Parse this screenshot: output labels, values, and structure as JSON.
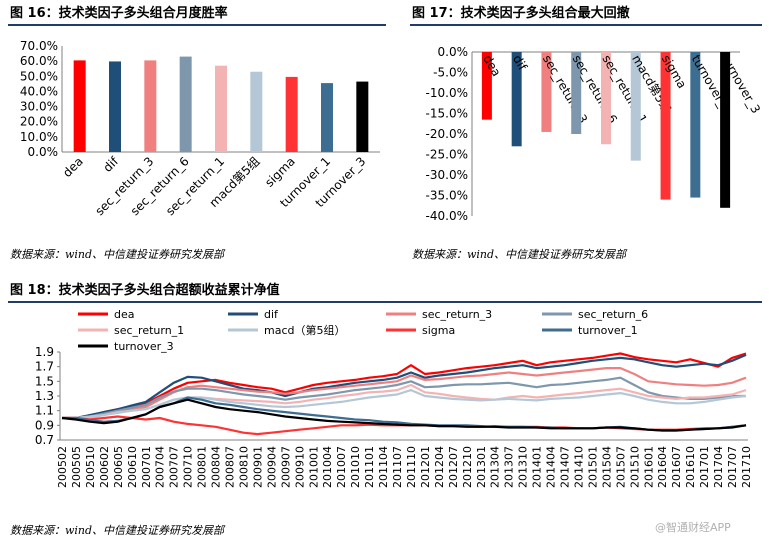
{
  "charts": {
    "fig16": {
      "title": "图 16：技术类因子多头组合月度胜率",
      "source": "数据来源：wind、中信建投证券研究发展部"
    },
    "fig17": {
      "title": "图 17：技术类因子多头组合最大回撤",
      "source": "数据来源：wind、中信建投证券研究发展部"
    },
    "fig18": {
      "title": "图 18：技术类因子多头组合超额收益累计净值",
      "source": "数据来源：wind、中信建投证券研究发展部"
    }
  },
  "watermark": "@智通财经APP",
  "chart_data": [
    {
      "type": "bar",
      "title": "图 16：技术类因子多头组合月度胜率",
      "categories": [
        "dea",
        "dif",
        "sec_return_3",
        "sec_return_6",
        "sec_return_1",
        "macd第5组",
        "sigma",
        "turnover_1",
        "turnover_3"
      ],
      "values": [
        60.5,
        59.8,
        60.5,
        63.0,
        57.0,
        53.0,
        49.6,
        45.5,
        46.5
      ],
      "colors": [
        "#ff0000",
        "#1f4e79",
        "#f08080",
        "#7f97ad",
        "#f4b3b3",
        "#b4c7d6",
        "#ff3333",
        "#3d6d91",
        "#000000"
      ],
      "yticks": [
        "70.0%",
        "60.0%",
        "50.0%",
        "40.0%",
        "30.0%",
        "20.0%",
        "10.0%",
        "0.0%"
      ],
      "ylim": [
        0,
        70
      ],
      "grid": false
    },
    {
      "type": "bar",
      "title": "图 17：技术类因子多头组合最大回撤",
      "categories": [
        "dea",
        "dif",
        "sec_return_3",
        "sec_return_6",
        "sec_return_1",
        "macd第5组",
        "sigma",
        "turnover_1",
        "turnover_3"
      ],
      "values": [
        -16.5,
        -23.0,
        -19.5,
        -20.0,
        -22.5,
        -26.5,
        -36.0,
        -35.5,
        -38.0
      ],
      "colors": [
        "#ff0000",
        "#1f4e79",
        "#f08080",
        "#7f97ad",
        "#f4b3b3",
        "#b4c7d6",
        "#ff3333",
        "#3d6d91",
        "#000000"
      ],
      "yticks": [
        "0.0%",
        "-5.0%",
        "-10.0%",
        "-15.0%",
        "-20.0%",
        "-25.0%",
        "-30.0%",
        "-35.0%",
        "-40.0%"
      ],
      "ylim": [
        -40,
        0
      ],
      "grid": false
    },
    {
      "type": "line",
      "title": "图 18：技术类因子多头组合超额收益累计净值",
      "x": [
        "200502",
        "200505",
        "200510",
        "200602",
        "200605",
        "200610",
        "200701",
        "200704",
        "200707",
        "200710",
        "200801",
        "200804",
        "200807",
        "200810",
        "200901",
        "200904",
        "200907",
        "200910",
        "201001",
        "201004",
        "201007",
        "201010",
        "201101",
        "201104",
        "201107",
        "201110",
        "201201",
        "201204",
        "201207",
        "201210",
        "201301",
        "201304",
        "201307",
        "201310",
        "201401",
        "201404",
        "201407",
        "201410",
        "201501",
        "201504",
        "201507",
        "201510",
        "201601",
        "201604",
        "201607",
        "201610",
        "201701",
        "201704",
        "201707",
        "201710"
      ],
      "yticks": [
        "1.9",
        "1.7",
        "1.5",
        "1.3",
        "1.1",
        "0.9",
        "0.7"
      ],
      "ylim": [
        0.7,
        1.9
      ],
      "legend_position": "top",
      "series": [
        {
          "name": "dea",
          "color": "#ff0000",
          "values": [
            1.0,
            1.0,
            1.03,
            1.08,
            1.12,
            1.15,
            1.2,
            1.3,
            1.4,
            1.48,
            1.5,
            1.52,
            1.48,
            1.45,
            1.42,
            1.4,
            1.35,
            1.4,
            1.45,
            1.48,
            1.5,
            1.52,
            1.55,
            1.57,
            1.6,
            1.72,
            1.6,
            1.62,
            1.65,
            1.68,
            1.7,
            1.72,
            1.75,
            1.78,
            1.72,
            1.76,
            1.78,
            1.8,
            1.82,
            1.85,
            1.88,
            1.83,
            1.8,
            1.78,
            1.76,
            1.8,
            1.75,
            1.7,
            1.82,
            1.88
          ]
        },
        {
          "name": "dif",
          "color": "#1f4e79",
          "values": [
            1.0,
            1.0,
            1.04,
            1.08,
            1.12,
            1.17,
            1.22,
            1.35,
            1.48,
            1.56,
            1.55,
            1.5,
            1.45,
            1.4,
            1.38,
            1.35,
            1.3,
            1.35,
            1.4,
            1.42,
            1.45,
            1.48,
            1.5,
            1.52,
            1.55,
            1.62,
            1.55,
            1.58,
            1.6,
            1.62,
            1.65,
            1.68,
            1.7,
            1.72,
            1.68,
            1.7,
            1.72,
            1.75,
            1.78,
            1.8,
            1.82,
            1.8,
            1.76,
            1.72,
            1.7,
            1.72,
            1.74,
            1.72,
            1.78,
            1.86
          ]
        },
        {
          "name": "sec_return_3",
          "color": "#f08080",
          "values": [
            1.0,
            1.0,
            1.02,
            1.05,
            1.08,
            1.12,
            1.15,
            1.25,
            1.35,
            1.42,
            1.44,
            1.42,
            1.4,
            1.38,
            1.36,
            1.35,
            1.33,
            1.35,
            1.38,
            1.4,
            1.42,
            1.44,
            1.46,
            1.48,
            1.5,
            1.58,
            1.52,
            1.53,
            1.55,
            1.57,
            1.58,
            1.6,
            1.62,
            1.6,
            1.58,
            1.6,
            1.62,
            1.64,
            1.66,
            1.68,
            1.68,
            1.6,
            1.5,
            1.48,
            1.46,
            1.45,
            1.44,
            1.45,
            1.48,
            1.55
          ]
        },
        {
          "name": "sec_return_6",
          "color": "#7f97ad",
          "values": [
            1.0,
            1.0,
            1.02,
            1.06,
            1.1,
            1.14,
            1.18,
            1.28,
            1.36,
            1.4,
            1.4,
            1.38,
            1.35,
            1.32,
            1.3,
            1.28,
            1.25,
            1.28,
            1.3,
            1.32,
            1.35,
            1.38,
            1.4,
            1.42,
            1.45,
            1.5,
            1.42,
            1.43,
            1.45,
            1.46,
            1.46,
            1.47,
            1.48,
            1.45,
            1.42,
            1.45,
            1.46,
            1.48,
            1.5,
            1.52,
            1.55,
            1.45,
            1.35,
            1.3,
            1.28,
            1.26,
            1.26,
            1.28,
            1.3,
            1.3
          ]
        },
        {
          "name": "sec_return_1",
          "color": "#f4b3b3",
          "values": [
            1.0,
            0.98,
            1.0,
            1.04,
            1.08,
            1.1,
            1.12,
            1.18,
            1.25,
            1.28,
            1.28,
            1.26,
            1.25,
            1.24,
            1.23,
            1.22,
            1.2,
            1.22,
            1.25,
            1.27,
            1.3,
            1.32,
            1.35,
            1.36,
            1.38,
            1.45,
            1.35,
            1.33,
            1.3,
            1.28,
            1.26,
            1.25,
            1.28,
            1.3,
            1.28,
            1.3,
            1.32,
            1.34,
            1.36,
            1.38,
            1.4,
            1.35,
            1.3,
            1.28,
            1.26,
            1.28,
            1.28,
            1.3,
            1.32,
            1.38
          ]
        },
        {
          "name": "macd（第5组）",
          "color": "#b4c7d6",
          "values": [
            1.0,
            1.0,
            1.02,
            1.04,
            1.07,
            1.1,
            1.12,
            1.18,
            1.25,
            1.28,
            1.28,
            1.25,
            1.22,
            1.2,
            1.18,
            1.16,
            1.15,
            1.16,
            1.18,
            1.2,
            1.22,
            1.25,
            1.28,
            1.3,
            1.32,
            1.38,
            1.3,
            1.28,
            1.26,
            1.25,
            1.24,
            1.25,
            1.26,
            1.25,
            1.24,
            1.26,
            1.27,
            1.28,
            1.3,
            1.32,
            1.34,
            1.3,
            1.25,
            1.22,
            1.2,
            1.2,
            1.22,
            1.25,
            1.28,
            1.3
          ]
        },
        {
          "name": "sigma",
          "color": "#ff3333",
          "values": [
            1.0,
            1.0,
            0.98,
            1.0,
            1.02,
            1.0,
            0.98,
            1.0,
            0.95,
            0.92,
            0.9,
            0.88,
            0.84,
            0.8,
            0.78,
            0.8,
            0.82,
            0.84,
            0.86,
            0.88,
            0.9,
            0.9,
            0.91,
            0.9,
            0.9,
            0.9,
            0.9,
            0.89,
            0.89,
            0.89,
            0.88,
            0.89,
            0.88,
            0.88,
            0.88,
            0.87,
            0.87,
            0.86,
            0.86,
            0.87,
            0.86,
            0.85,
            0.84,
            0.84,
            0.84,
            0.85,
            0.86,
            0.86,
            0.88,
            0.9
          ]
        },
        {
          "name": "turnover_1",
          "color": "#3d6d91",
          "values": [
            1.0,
            1.0,
            0.97,
            0.95,
            0.96,
            1.0,
            1.05,
            1.15,
            1.2,
            1.28,
            1.25,
            1.2,
            1.18,
            1.15,
            1.12,
            1.1,
            1.08,
            1.06,
            1.04,
            1.02,
            1.0,
            0.98,
            0.97,
            0.95,
            0.94,
            0.92,
            0.91,
            0.9,
            0.9,
            0.9,
            0.89,
            0.88,
            0.88,
            0.88,
            0.87,
            0.87,
            0.86,
            0.86,
            0.86,
            0.87,
            0.88,
            0.86,
            0.84,
            0.83,
            0.83,
            0.84,
            0.85,
            0.86,
            0.88,
            0.9
          ]
        },
        {
          "name": "turnover_3",
          "color": "#000000",
          "values": [
            1.0,
            0.98,
            0.95,
            0.93,
            0.95,
            1.0,
            1.05,
            1.15,
            1.2,
            1.25,
            1.2,
            1.15,
            1.12,
            1.1,
            1.08,
            1.05,
            1.02,
            1.0,
            0.98,
            0.96,
            0.95,
            0.94,
            0.93,
            0.92,
            0.91,
            0.9,
            0.9,
            0.89,
            0.89,
            0.88,
            0.88,
            0.88,
            0.87,
            0.87,
            0.87,
            0.86,
            0.86,
            0.86,
            0.86,
            0.87,
            0.87,
            0.86,
            0.84,
            0.83,
            0.83,
            0.84,
            0.85,
            0.86,
            0.87,
            0.9
          ]
        }
      ]
    }
  ]
}
